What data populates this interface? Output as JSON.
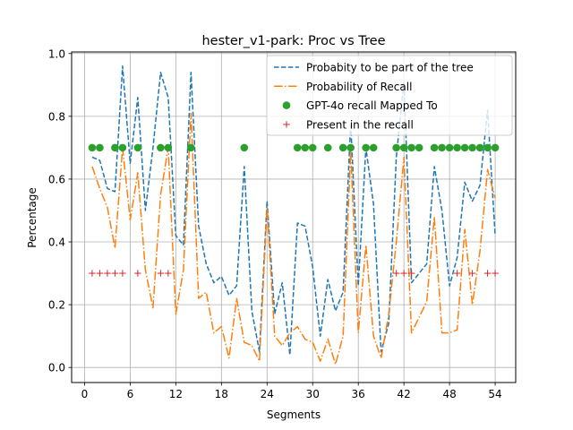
{
  "chart_data": {
    "type": "line",
    "title": "hester_v1-park: Proc vs Tree",
    "xlabel": "Segments",
    "ylabel": "Percentage",
    "xlim": [
      -1.7,
      56.7
    ],
    "ylim": [
      -0.048,
      1.005
    ],
    "xticks": [
      0,
      6,
      12,
      18,
      24,
      30,
      36,
      42,
      48,
      54
    ],
    "yticks": [
      0.0,
      0.2,
      0.4,
      0.6,
      0.8,
      1.0
    ],
    "ytick_labels": [
      "0.0",
      "0.2",
      "0.4",
      "0.6",
      "0.8",
      "1.0"
    ],
    "grid": true,
    "legend_position": "top-right",
    "x": [
      1,
      2,
      3,
      4,
      5,
      6,
      7,
      8,
      9,
      10,
      11,
      12,
      13,
      14,
      15,
      16,
      17,
      18,
      19,
      20,
      21,
      22,
      23,
      24,
      25,
      26,
      27,
      28,
      29,
      30,
      31,
      32,
      33,
      34,
      35,
      36,
      37,
      38,
      39,
      40,
      41,
      42,
      43,
      44,
      45,
      46,
      47,
      48,
      49,
      50,
      51,
      52,
      53,
      54
    ],
    "series": [
      {
        "name": "Probabity to be part of the tree",
        "style": "dashed",
        "color": "#1f77b4",
        "values": [
          0.67,
          0.66,
          0.57,
          0.56,
          0.96,
          0.65,
          0.86,
          0.5,
          0.7,
          0.94,
          0.86,
          0.42,
          0.39,
          0.94,
          0.45,
          0.33,
          0.27,
          0.29,
          0.23,
          0.26,
          0.64,
          0.18,
          0.05,
          0.53,
          0.17,
          0.27,
          0.04,
          0.46,
          0.45,
          0.32,
          0.1,
          0.28,
          0.18,
          0.24,
          0.78,
          0.26,
          0.7,
          0.52,
          0.05,
          0.14,
          0.67,
          0.91,
          0.27,
          0.3,
          0.33,
          0.64,
          0.5,
          0.26,
          0.35,
          0.59,
          0.53,
          0.58,
          0.82,
          0.42
        ]
      },
      {
        "name": "Probability of Recall",
        "style": "dashdot",
        "color": "#ff7f0e",
        "values": [
          0.64,
          0.57,
          0.51,
          0.38,
          0.7,
          0.47,
          0.62,
          0.31,
          0.19,
          0.55,
          0.7,
          0.17,
          0.31,
          0.81,
          0.22,
          0.24,
          0.11,
          0.13,
          0.03,
          0.22,
          0.08,
          0.07,
          0.02,
          0.51,
          0.1,
          0.07,
          0.11,
          0.13,
          0.09,
          0.08,
          0.02,
          0.09,
          0.01,
          0.1,
          0.69,
          0.11,
          0.39,
          0.1,
          0.03,
          0.17,
          0.4,
          0.67,
          0.11,
          0.16,
          0.21,
          0.48,
          0.11,
          0.11,
          0.12,
          0.44,
          0.2,
          0.37,
          0.63,
          0.54
        ]
      },
      {
        "name": "GPT-4o recall Mapped To",
        "style": "marker-circle",
        "color": "#2ca02c",
        "x": [
          1,
          2,
          4,
          5,
          7,
          10,
          11,
          14,
          21,
          28,
          29,
          30,
          32,
          34,
          35,
          37,
          38,
          41,
          42,
          43,
          44,
          46,
          47,
          48,
          49,
          50,
          51,
          52,
          53,
          54
        ],
        "values": [
          0.7,
          0.7,
          0.7,
          0.7,
          0.7,
          0.7,
          0.7,
          0.7,
          0.7,
          0.7,
          0.7,
          0.7,
          0.7,
          0.7,
          0.7,
          0.7,
          0.7,
          0.7,
          0.7,
          0.7,
          0.7,
          0.7,
          0.7,
          0.7,
          0.7,
          0.7,
          0.7,
          0.7,
          0.7,
          0.7
        ]
      },
      {
        "name": "Present in the recall",
        "style": "marker-plus",
        "color": "#d62728",
        "x": [
          1,
          2,
          3,
          4,
          5,
          7,
          10,
          11,
          41,
          42,
          43,
          49,
          51,
          53,
          54
        ],
        "values": [
          0.3,
          0.3,
          0.3,
          0.3,
          0.3,
          0.3,
          0.3,
          0.3,
          0.3,
          0.3,
          0.3,
          0.3,
          0.3,
          0.3,
          0.3
        ]
      }
    ]
  }
}
